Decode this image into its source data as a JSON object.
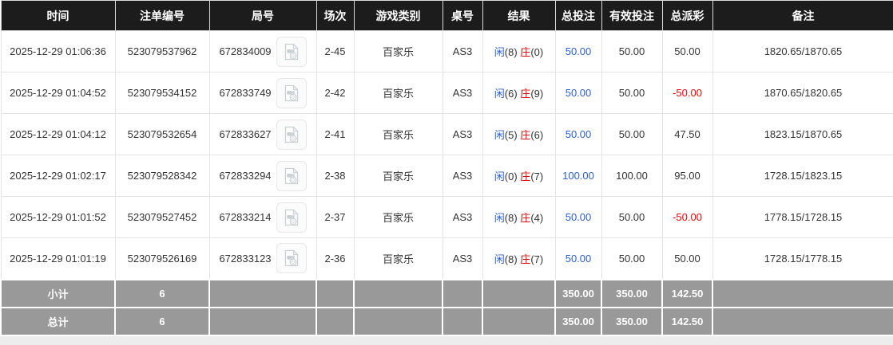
{
  "table": {
    "columns": [
      {
        "key": "time",
        "label": "时间"
      },
      {
        "key": "bet_id",
        "label": "注单编号"
      },
      {
        "key": "round_id",
        "label": "局号"
      },
      {
        "key": "session",
        "label": "场次"
      },
      {
        "key": "game_type",
        "label": "游戏类别"
      },
      {
        "key": "table_no",
        "label": "桌号"
      },
      {
        "key": "result",
        "label": "结果"
      },
      {
        "key": "total_bet",
        "label": "总投注"
      },
      {
        "key": "valid_bet",
        "label": "有效投注"
      },
      {
        "key": "total_payout",
        "label": "总派彩"
      },
      {
        "key": "remark",
        "label": "备注"
      }
    ],
    "result_labels": {
      "player": "闲",
      "banker": "庄"
    },
    "icons": {
      "round_video": "video-file-icon"
    },
    "rows": [
      {
        "time": "2025-12-29 01:06:36",
        "bet_id": "523079537962",
        "round_id": "672834009",
        "session": "2-45",
        "game_type": "百家乐",
        "table_no": "AS3",
        "player_score": "(8)",
        "banker_score": "(0)",
        "total_bet": "50.00",
        "valid_bet": "50.00",
        "total_payout": "50.00",
        "remark": "1820.65/1870.65"
      },
      {
        "time": "2025-12-29 01:04:52",
        "bet_id": "523079534152",
        "round_id": "672833749",
        "session": "2-42",
        "game_type": "百家乐",
        "table_no": "AS3",
        "player_score": "(6)",
        "banker_score": "(9)",
        "total_bet": "50.00",
        "valid_bet": "50.00",
        "total_payout": "-50.00",
        "remark": "1870.65/1820.65"
      },
      {
        "time": "2025-12-29 01:04:12",
        "bet_id": "523079532654",
        "round_id": "672833627",
        "session": "2-41",
        "game_type": "百家乐",
        "table_no": "AS3",
        "player_score": "(5)",
        "banker_score": "(6)",
        "total_bet": "50.00",
        "valid_bet": "50.00",
        "total_payout": "47.50",
        "remark": "1823.15/1870.65"
      },
      {
        "time": "2025-12-29 01:02:17",
        "bet_id": "523079528342",
        "round_id": "672833294",
        "session": "2-38",
        "game_type": "百家乐",
        "table_no": "AS3",
        "player_score": "(0)",
        "banker_score": "(7)",
        "total_bet": "100.00",
        "valid_bet": "100.00",
        "total_payout": "95.00",
        "remark": "1728.15/1823.15"
      },
      {
        "time": "2025-12-29 01:01:52",
        "bet_id": "523079527452",
        "round_id": "672833214",
        "session": "2-37",
        "game_type": "百家乐",
        "table_no": "AS3",
        "player_score": "(8)",
        "banker_score": "(4)",
        "total_bet": "50.00",
        "valid_bet": "50.00",
        "total_payout": "-50.00",
        "remark": "1778.15/1728.15"
      },
      {
        "time": "2025-12-29 01:01:19",
        "bet_id": "523079526169",
        "round_id": "672833123",
        "session": "2-36",
        "game_type": "百家乐",
        "table_no": "AS3",
        "player_score": "(8)",
        "banker_score": "(7)",
        "total_bet": "50.00",
        "valid_bet": "50.00",
        "total_payout": "50.00",
        "remark": "1728.15/1778.15"
      }
    ],
    "footer_rows": [
      {
        "label": "小计",
        "count": "6",
        "total_bet": "350.00",
        "valid_bet": "350.00",
        "total_payout": "142.50"
      },
      {
        "label": "总计",
        "count": "6",
        "total_bet": "350.00",
        "valid_bet": "350.00",
        "total_payout": "142.50"
      }
    ]
  },
  "colors": {
    "header_bg": "#1c1c1c",
    "footer_bg": "#999999",
    "player_blue": "#2a5ed9",
    "banker_red": "#e60000",
    "amount_blue": "#2a5ed9",
    "negative_red": "#ff0000"
  }
}
